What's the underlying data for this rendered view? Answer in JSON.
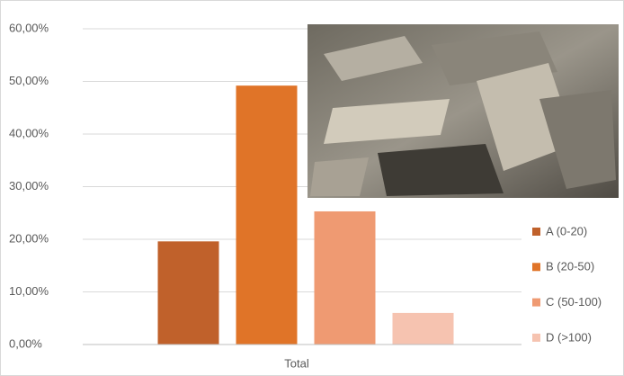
{
  "chart_data": {
    "type": "bar",
    "categories": [
      "Total"
    ],
    "series": [
      {
        "name": "A (0-20)",
        "color": "#c0612b",
        "values": [
          19.6
        ]
      },
      {
        "name": "B (20-50)",
        "color": "#e07428",
        "values": [
          49.2
        ]
      },
      {
        "name": "C (50-100)",
        "color": "#ef9a72",
        "values": [
          25.3
        ]
      },
      {
        "name": "D (>100)",
        "color": "#f6c3b0",
        "values": [
          6.0
        ]
      }
    ],
    "ylim": [
      0,
      60
    ],
    "yticks": [
      {
        "value": 0,
        "label": "0,00%"
      },
      {
        "value": 10,
        "label": "10,00%"
      },
      {
        "value": 20,
        "label": "20,00%"
      },
      {
        "value": 30,
        "label": "30,00%"
      },
      {
        "value": 40,
        "label": "40,00%"
      },
      {
        "value": 50,
        "label": "50,00%"
      },
      {
        "value": 60,
        "label": "60,00%"
      }
    ],
    "grid": true,
    "legend": "right"
  }
}
